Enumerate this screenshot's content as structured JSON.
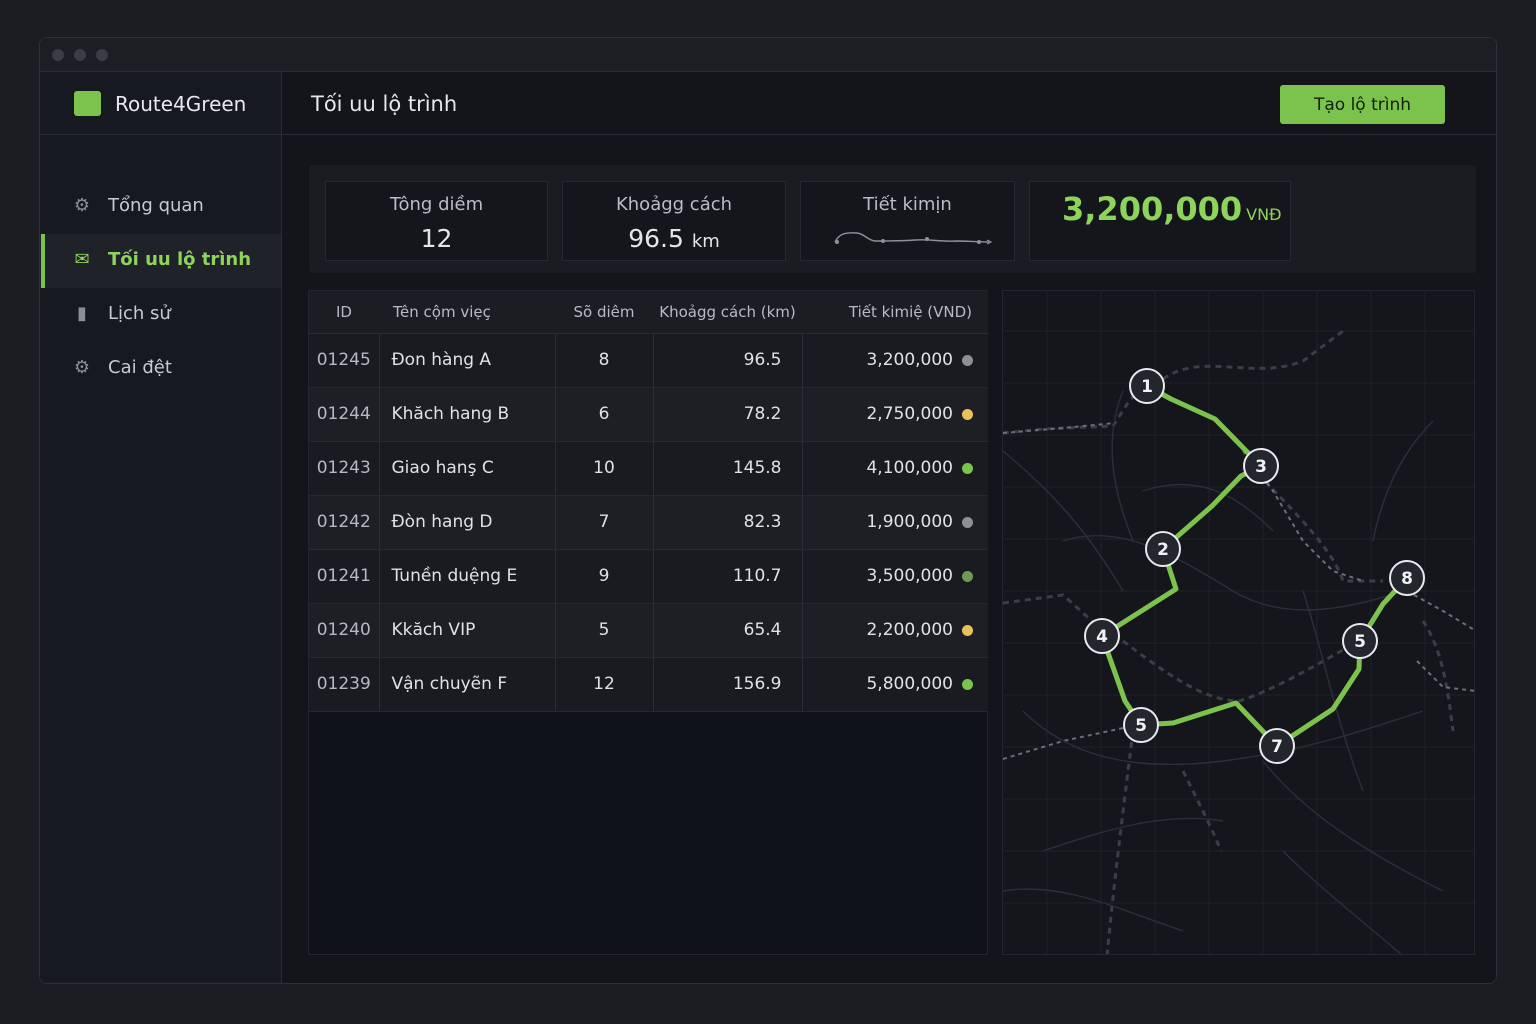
{
  "app": {
    "name": "Route4Green"
  },
  "sidebar": {
    "items": [
      {
        "label": "Tổng quan",
        "icon": "gear-icon",
        "active": false
      },
      {
        "label": "Tối uu lộ trình",
        "icon": "mail-icon",
        "active": true
      },
      {
        "label": "Lịch sử",
        "icon": "chat-icon",
        "active": false
      },
      {
        "label": "Cai đệt",
        "icon": "settings-icon",
        "active": false
      }
    ]
  },
  "header": {
    "title": "Tối uu lộ trình",
    "create_button": "Tạo lộ trình"
  },
  "stats": {
    "total_points": {
      "label": "Tông diềm",
      "value": "12"
    },
    "distance": {
      "label": "Khoảgg cách",
      "value": "96.5",
      "unit": "km"
    },
    "savings_trend": {
      "label": "Tiết kimịn"
    },
    "savings_total": {
      "value": "3,200,000",
      "unit": "VNĐ"
    }
  },
  "table": {
    "headers": {
      "id": "ID",
      "name": "Tên cộm viẹç",
      "count": "Sõ diêm",
      "distance": "Khoảgg cách (km)",
      "savings": "Tiết kimiệ (VND)"
    },
    "rows": [
      {
        "id": "01245",
        "name": "Đon hàng A",
        "count": "8",
        "distance": "96.5",
        "savings": "3,200,000",
        "status_color": "#8e9096"
      },
      {
        "id": "01244",
        "name": "Khăch hang B",
        "count": "6",
        "distance": "78.2",
        "savings": "2,750,000",
        "status_color": "#e8c15a"
      },
      {
        "id": "01243",
        "name": "Giao hanş C",
        "count": "10",
        "distance": "145.8",
        "savings": "4,100,000",
        "status_color": "#7cc34d"
      },
      {
        "id": "01242",
        "name": "Đòn hang D",
        "count": "7",
        "distance": "82.3",
        "savings": "1,900,000",
        "status_color": "#8e9096"
      },
      {
        "id": "01241",
        "name": "Tunền duệng E",
        "count": "9",
        "distance": "110.7",
        "savings": "3,500,000",
        "status_color": "#6f9a55"
      },
      {
        "id": "01240",
        "name": "Kkăch VIP",
        "count": "5",
        "distance": "65.4",
        "savings": "2,200,000",
        "status_color": "#e8c15a"
      },
      {
        "id": "01239",
        "name": "Vận chuyẽn F",
        "count": "12",
        "distance": "156.9",
        "savings": "5,800,000",
        "status_color": "#7cc34d"
      }
    ]
  },
  "map": {
    "route_color": "#7cc34d",
    "stops": [
      {
        "label": "1"
      },
      {
        "label": "3"
      },
      {
        "label": "2"
      },
      {
        "label": "4"
      },
      {
        "label": "5"
      },
      {
        "label": "7"
      },
      {
        "label": "5"
      },
      {
        "label": "8"
      }
    ]
  }
}
